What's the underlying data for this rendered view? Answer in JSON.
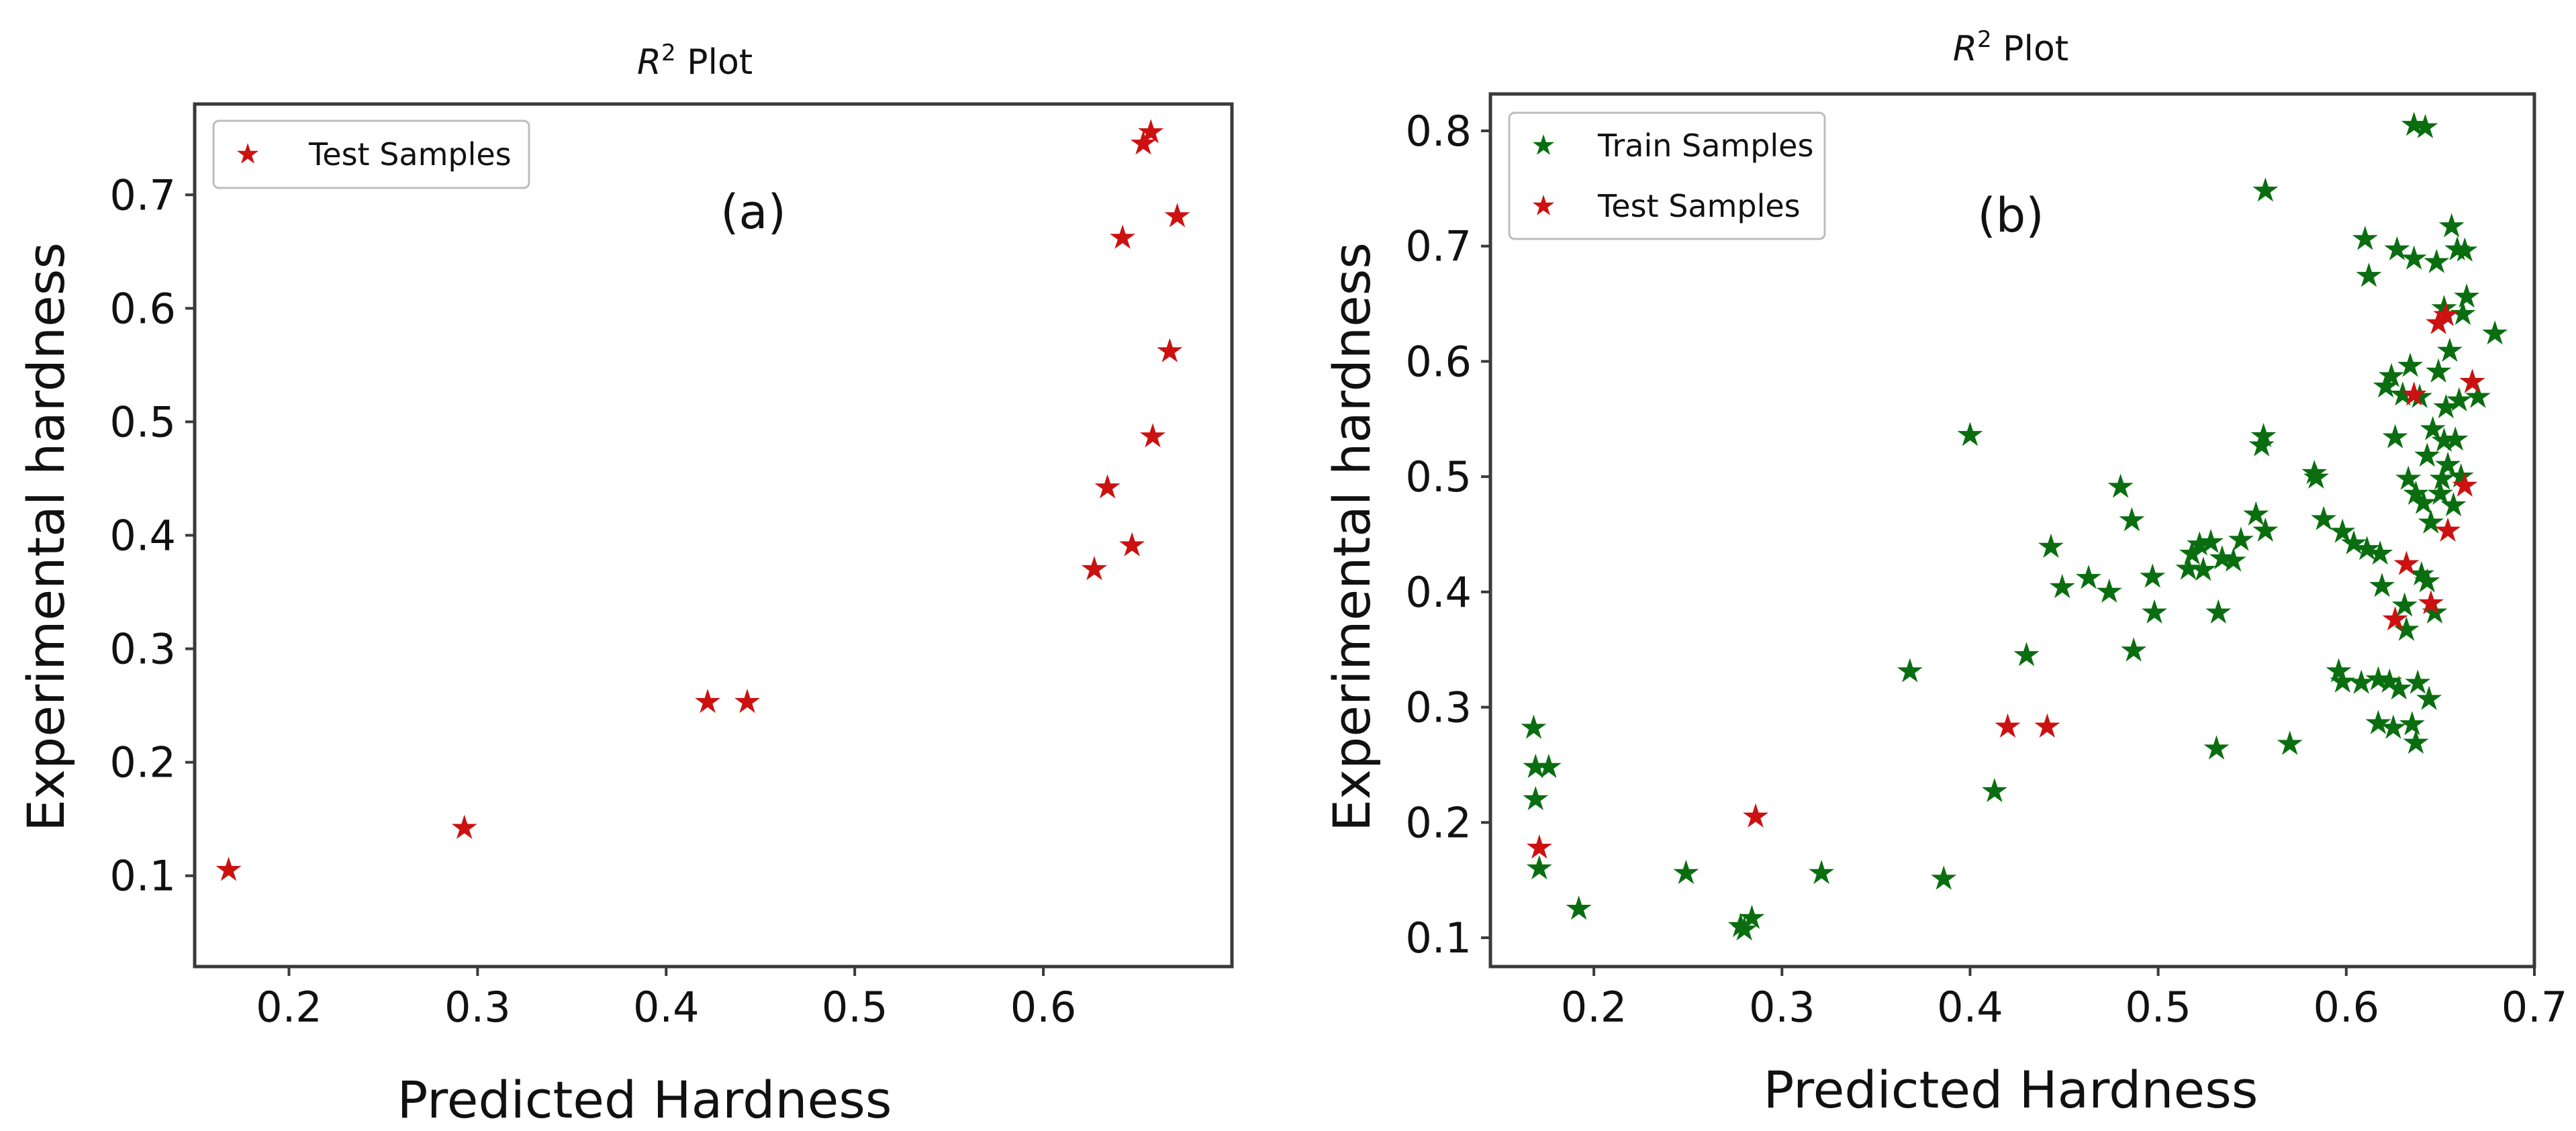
{
  "chart_data": [
    {
      "type": "scatter",
      "title_prefix": "R",
      "title_sup": "2",
      "title_rest": " Plot",
      "xlabel": "Predicted Hardness",
      "ylabel": "Experimental hardness",
      "xlim": [
        0.15,
        0.7
      ],
      "ylim": [
        0.02,
        0.78
      ],
      "xticks": [
        "0.2",
        "0.3",
        "0.4",
        "0.5",
        "0.6"
      ],
      "yticks": [
        "0.1",
        "0.2",
        "0.3",
        "0.4",
        "0.5",
        "0.6",
        "0.7"
      ],
      "panel_label": "(a)",
      "legend_position": "top-left",
      "series": [
        {
          "name": "Test Samples",
          "color": "#cc1111",
          "points": [
            [
              0.168,
              0.105
            ],
            [
              0.293,
              0.142
            ],
            [
              0.422,
              0.253
            ],
            [
              0.443,
              0.253
            ],
            [
              0.627,
              0.37
            ],
            [
              0.647,
              0.391
            ],
            [
              0.634,
              0.442
            ],
            [
              0.658,
              0.487
            ],
            [
              0.667,
              0.562
            ],
            [
              0.642,
              0.662
            ],
            [
              0.671,
              0.681
            ],
            [
              0.653,
              0.745
            ],
            [
              0.657,
              0.755
            ]
          ]
        }
      ]
    },
    {
      "type": "scatter",
      "title_prefix": "R",
      "title_sup": "2",
      "title_rest": " Plot",
      "xlabel": "Predicted Hardness",
      "ylabel": "Experimental hardness",
      "xlim": [
        0.145,
        0.7
      ],
      "ylim": [
        0.075,
        0.832
      ],
      "xticks": [
        "0.2",
        "0.3",
        "0.4",
        "0.5",
        "0.6",
        "0.7"
      ],
      "yticks": [
        "0.1",
        "0.2",
        "0.3",
        "0.4",
        "0.5",
        "0.6",
        "0.7",
        "0.8"
      ],
      "panel_label": "(b)",
      "legend_position": "top-left",
      "series": [
        {
          "name": "Train Samples",
          "color": "#0a6e10",
          "points": [
            [
              0.168,
              0.282
            ],
            [
              0.169,
              0.248
            ],
            [
              0.176,
              0.248
            ],
            [
              0.169,
              0.22
            ],
            [
              0.171,
              0.16
            ],
            [
              0.192,
              0.125
            ],
            [
              0.249,
              0.156
            ],
            [
              0.278,
              0.11
            ],
            [
              0.28,
              0.107
            ],
            [
              0.284,
              0.117
            ],
            [
              0.321,
              0.156
            ],
            [
              0.368,
              0.331
            ],
            [
              0.386,
              0.151
            ],
            [
              0.4,
              0.536
            ],
            [
              0.413,
              0.227
            ],
            [
              0.43,
              0.345
            ],
            [
              0.443,
              0.439
            ],
            [
              0.449,
              0.404
            ],
            [
              0.463,
              0.412
            ],
            [
              0.474,
              0.4
            ],
            [
              0.48,
              0.491
            ],
            [
              0.486,
              0.462
            ],
            [
              0.487,
              0.349
            ],
            [
              0.497,
              0.413
            ],
            [
              0.498,
              0.382
            ],
            [
              0.516,
              0.42
            ],
            [
              0.518,
              0.433
            ],
            [
              0.522,
              0.441
            ],
            [
              0.524,
              0.419
            ],
            [
              0.528,
              0.443
            ],
            [
              0.531,
              0.264
            ],
            [
              0.532,
              0.382
            ],
            [
              0.534,
              0.429
            ],
            [
              0.54,
              0.427
            ],
            [
              0.544,
              0.445
            ],
            [
              0.552,
              0.467
            ],
            [
              0.555,
              0.527
            ],
            [
              0.556,
              0.535
            ],
            [
              0.557,
              0.453
            ],
            [
              0.557,
              0.748
            ],
            [
              0.57,
              0.268
            ],
            [
              0.583,
              0.503
            ],
            [
              0.584,
              0.499
            ],
            [
              0.588,
              0.463
            ],
            [
              0.596,
              0.331
            ],
            [
              0.598,
              0.322
            ],
            [
              0.598,
              0.452
            ],
            [
              0.604,
              0.442
            ],
            [
              0.608,
              0.321
            ],
            [
              0.61,
              0.706
            ],
            [
              0.611,
              0.437
            ],
            [
              0.612,
              0.674
            ],
            [
              0.617,
              0.286
            ],
            [
              0.617,
              0.324
            ],
            [
              0.618,
              0.433
            ],
            [
              0.619,
              0.405
            ],
            [
              0.621,
              0.578
            ],
            [
              0.623,
              0.322
            ],
            [
              0.624,
              0.587
            ],
            [
              0.625,
              0.282
            ],
            [
              0.626,
              0.534
            ],
            [
              0.627,
              0.697
            ],
            [
              0.628,
              0.316
            ],
            [
              0.63,
              0.571
            ],
            [
              0.631,
              0.388
            ],
            [
              0.632,
              0.367
            ],
            [
              0.633,
              0.498
            ],
            [
              0.634,
              0.596
            ],
            [
              0.635,
              0.285
            ],
            [
              0.636,
              0.805
            ],
            [
              0.636,
              0.689
            ],
            [
              0.637,
              0.485
            ],
            [
              0.637,
              0.269
            ],
            [
              0.638,
              0.321
            ],
            [
              0.639,
              0.569
            ],
            [
              0.64,
              0.415
            ],
            [
              0.641,
              0.477
            ],
            [
              0.642,
              0.803
            ],
            [
              0.643,
              0.409
            ],
            [
              0.643,
              0.518
            ],
            [
              0.644,
              0.307
            ],
            [
              0.645,
              0.46
            ],
            [
              0.646,
              0.541
            ],
            [
              0.647,
              0.382
            ],
            [
              0.648,
              0.686
            ],
            [
              0.649,
              0.591
            ],
            [
              0.65,
              0.485
            ],
            [
              0.651,
              0.498
            ],
            [
              0.652,
              0.531
            ],
            [
              0.652,
              0.646
            ],
            [
              0.653,
              0.56
            ],
            [
              0.654,
              0.51
            ],
            [
              0.655,
              0.609
            ],
            [
              0.656,
              0.717
            ],
            [
              0.657,
              0.475
            ],
            [
              0.658,
              0.532
            ],
            [
              0.659,
              0.697
            ],
            [
              0.66,
              0.566
            ],
            [
              0.661,
              0.5
            ],
            [
              0.662,
              0.641
            ],
            [
              0.663,
              0.696
            ],
            [
              0.664,
              0.656
            ],
            [
              0.667,
              0.582
            ],
            [
              0.67,
              0.569
            ],
            [
              0.679,
              0.624
            ]
          ]
        },
        {
          "name": "Test Samples",
          "color": "#cc1111",
          "points": [
            [
              0.171,
              0.178
            ],
            [
              0.286,
              0.205
            ],
            [
              0.42,
              0.283
            ],
            [
              0.441,
              0.283
            ],
            [
              0.626,
              0.376
            ],
            [
              0.632,
              0.424
            ],
            [
              0.645,
              0.39
            ],
            [
              0.654,
              0.453
            ],
            [
              0.663,
              0.492
            ],
            [
              0.636,
              0.571
            ],
            [
              0.649,
              0.633
            ],
            [
              0.653,
              0.64
            ],
            [
              0.667,
              0.582
            ]
          ]
        }
      ]
    }
  ]
}
